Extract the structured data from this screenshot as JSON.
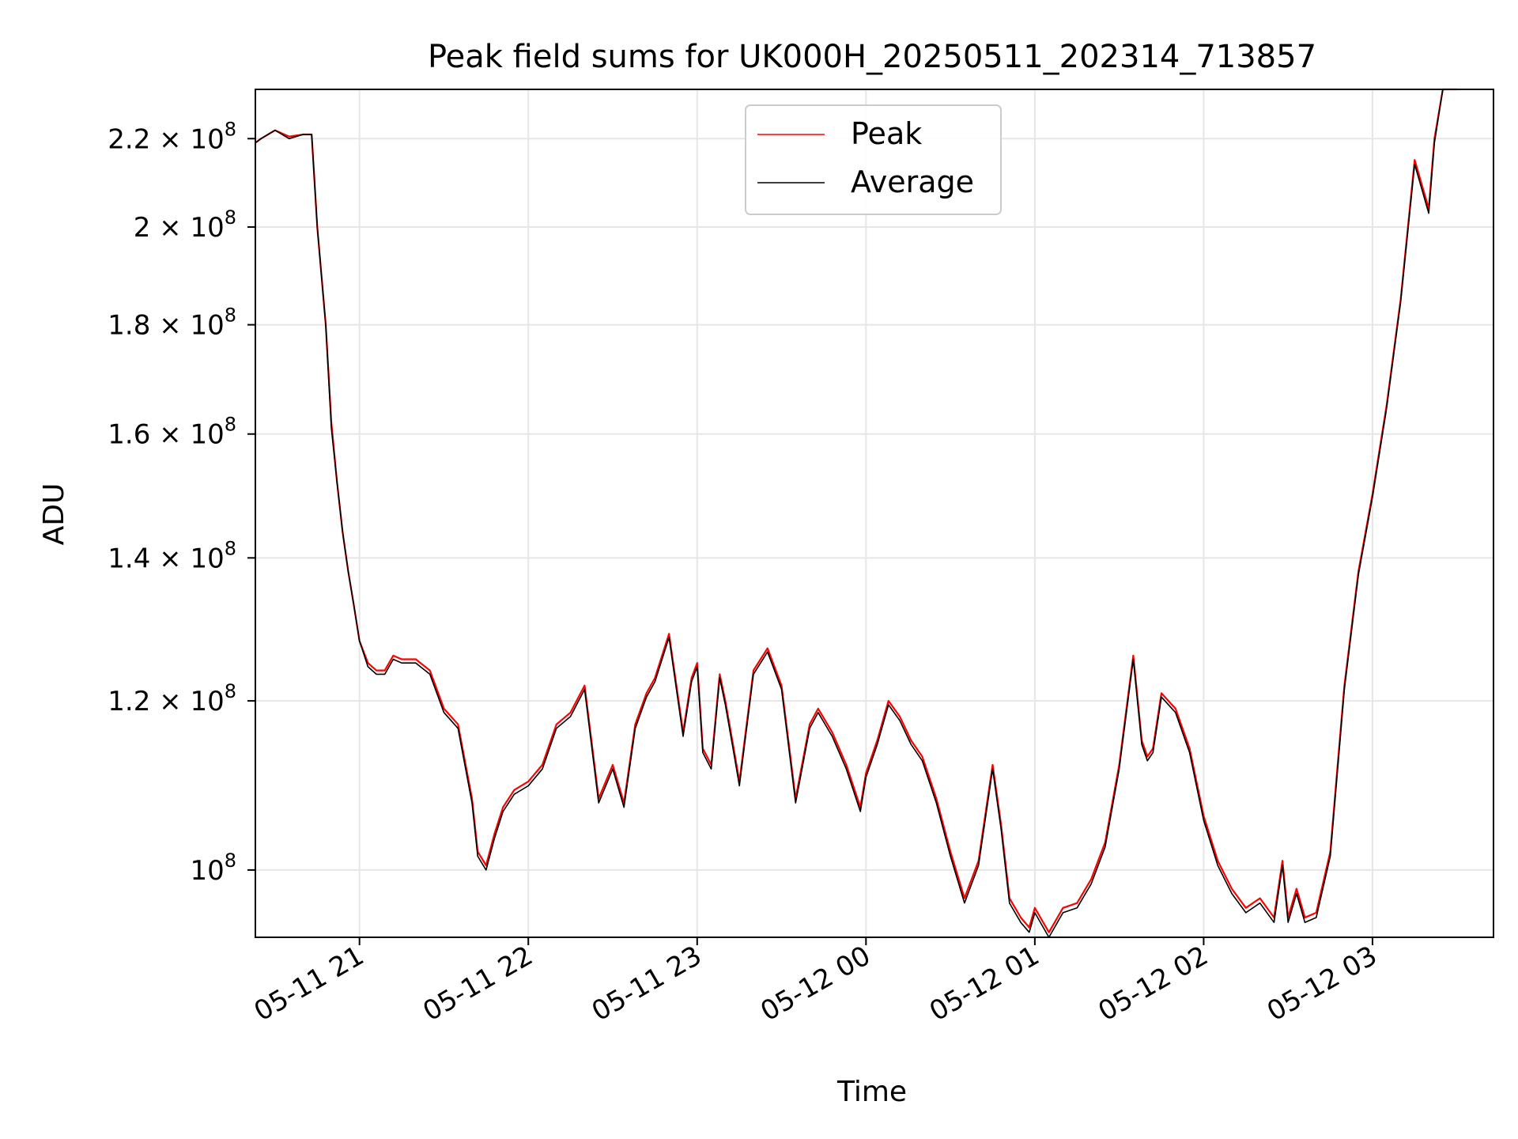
{
  "chart_data": {
    "type": "line",
    "title": "Peak field sums for UK000H_20250511_202314_713857",
    "xlabel": "Time",
    "ylabel": "ADU",
    "yscale": "log",
    "ylim": [
      93000000.0,
      232000000.0
    ],
    "xlim": [
      "2025-05-11 20:23",
      "2025-05-12 03:43"
    ],
    "grid": true,
    "legend_position": "top-center",
    "x_ticks": [
      {
        "time": "2025-05-11 21:00",
        "label": "05-11 21"
      },
      {
        "time": "2025-05-11 22:00",
        "label": "05-11 22"
      },
      {
        "time": "2025-05-11 23:00",
        "label": "05-11 23"
      },
      {
        "time": "2025-05-12 00:00",
        "label": "05-12 00"
      },
      {
        "time": "2025-05-12 01:00",
        "label": "05-12 01"
      },
      {
        "time": "2025-05-12 02:00",
        "label": "05-12 02"
      },
      {
        "time": "2025-05-12 03:00",
        "label": "05-12 03"
      }
    ],
    "y_ticks": [
      {
        "value": 100000000.0,
        "mantissa": "",
        "exponent": "8"
      },
      {
        "value": 120000000.0,
        "mantissa": "1.2",
        "exponent": "8"
      },
      {
        "value": 140000000.0,
        "mantissa": "1.4",
        "exponent": "8"
      },
      {
        "value": 160000000.0,
        "mantissa": "1.6",
        "exponent": "8"
      },
      {
        "value": 180000000.0,
        "mantissa": "1.8",
        "exponent": "8"
      },
      {
        "value": 200000000.0,
        "mantissa": "2",
        "exponent": "8"
      },
      {
        "value": 220000000.0,
        "mantissa": "2.2",
        "exponent": "8"
      }
    ],
    "series": [
      {
        "name": "Peak",
        "color": "#ff0000"
      },
      {
        "name": "Average",
        "color": "#000000"
      }
    ],
    "x": [
      "2025-05-11 20:23",
      "2025-05-11 20:25",
      "2025-05-11 20:30",
      "2025-05-11 20:35",
      "2025-05-11 20:40",
      "2025-05-11 20:43",
      "2025-05-11 20:45",
      "2025-05-11 20:48",
      "2025-05-11 20:50",
      "2025-05-11 20:52",
      "2025-05-11 20:54",
      "2025-05-11 20:56",
      "2025-05-11 20:58",
      "2025-05-11 21:00",
      "2025-05-11 21:03",
      "2025-05-11 21:06",
      "2025-05-11 21:09",
      "2025-05-11 21:12",
      "2025-05-11 21:15",
      "2025-05-11 21:20",
      "2025-05-11 21:25",
      "2025-05-11 21:30",
      "2025-05-11 21:35",
      "2025-05-11 21:40",
      "2025-05-11 21:42",
      "2025-05-11 21:45",
      "2025-05-11 21:48",
      "2025-05-11 21:51",
      "2025-05-11 21:55",
      "2025-05-11 22:00",
      "2025-05-11 22:05",
      "2025-05-11 22:10",
      "2025-05-11 22:15",
      "2025-05-11 22:20",
      "2025-05-11 22:25",
      "2025-05-11 22:30",
      "2025-05-11 22:34",
      "2025-05-11 22:38",
      "2025-05-11 22:42",
      "2025-05-11 22:45",
      "2025-05-11 22:50",
      "2025-05-11 22:55",
      "2025-05-11 22:58",
      "2025-05-11 23:00",
      "2025-05-11 23:02",
      "2025-05-11 23:05",
      "2025-05-11 23:08",
      "2025-05-11 23:10",
      "2025-05-11 23:13",
      "2025-05-11 23:15",
      "2025-05-11 23:20",
      "2025-05-11 23:25",
      "2025-05-11 23:30",
      "2025-05-11 23:35",
      "2025-05-11 23:40",
      "2025-05-11 23:43",
      "2025-05-11 23:48",
      "2025-05-11 23:53",
      "2025-05-11 23:58",
      "2025-05-12 00:00",
      "2025-05-12 00:04",
      "2025-05-12 00:08",
      "2025-05-12 00:12",
      "2025-05-12 00:16",
      "2025-05-12 00:20",
      "2025-05-12 00:25",
      "2025-05-12 00:30",
      "2025-05-12 00:35",
      "2025-05-12 00:40",
      "2025-05-12 00:45",
      "2025-05-12 00:48",
      "2025-05-12 00:51",
      "2025-05-12 00:55",
      "2025-05-12 00:58",
      "2025-05-12 01:00",
      "2025-05-12 01:05",
      "2025-05-12 01:10",
      "2025-05-12 01:15",
      "2025-05-12 01:20",
      "2025-05-12 01:25",
      "2025-05-12 01:30",
      "2025-05-12 01:35",
      "2025-05-12 01:38",
      "2025-05-12 01:40",
      "2025-05-12 01:42",
      "2025-05-12 01:45",
      "2025-05-12 01:50",
      "2025-05-12 01:55",
      "2025-05-12 02:00",
      "2025-05-12 02:05",
      "2025-05-12 02:10",
      "2025-05-12 02:15",
      "2025-05-12 02:20",
      "2025-05-12 02:25",
      "2025-05-12 02:28",
      "2025-05-12 02:30",
      "2025-05-12 02:33",
      "2025-05-12 02:36",
      "2025-05-12 02:40",
      "2025-05-12 02:45",
      "2025-05-12 02:50",
      "2025-05-12 02:55",
      "2025-05-12 03:00",
      "2025-05-12 03:05",
      "2025-05-12 03:10",
      "2025-05-12 03:15",
      "2025-05-12 03:20",
      "2025-05-12 03:22",
      "2025-05-12 03:25",
      "2025-05-12 03:30",
      "2025-05-12 03:35",
      "2025-05-12 03:43"
    ],
    "peak": [
      219000000.0,
      220000000.0,
      222000000.0,
      220500000.0,
      221000000.0,
      221000000.0,
      200000000.0,
      180000000.0,
      162000000.0,
      152000000.0,
      144000000.0,
      138000000.0,
      133000000.0,
      128000000.0,
      125000000.0,
      124000000.0,
      124000000.0,
      126000000.0,
      125500000.0,
      125500000.0,
      124000000.0,
      119000000.0,
      117000000.0,
      108000000.0,
      102000000.0,
      100500000.0,
      104000000.0,
      107000000.0,
      109000000.0,
      110000000.0,
      112000000.0,
      117000000.0,
      118500000.0,
      122000000.0,
      108000000.0,
      112000000.0,
      107500000.0,
      117000000.0,
      121000000.0,
      123000000.0,
      129000000.0,
      116000000.0,
      123000000.0,
      125000000.0,
      114000000.0,
      112000000.0,
      123500000.0,
      120000000.0,
      114000000.0,
      110000000.0,
      124000000.0,
      127000000.0,
      122000000.0,
      108000000.0,
      117000000.0,
      119000000.0,
      116000000.0,
      112000000.0,
      107000000.0,
      111000000.0,
      115000000.0,
      120000000.0,
      118000000.0,
      115000000.0,
      113000000.0,
      108000000.0,
      102000000.0,
      97000000.0,
      101000000.0,
      112000000.0,
      105000000.0,
      97000000.0,
      95000000.0,
      94000000.0,
      96000000.0,
      93500000.0,
      96000000.0,
      96500000.0,
      99000000.0,
      103000000.0,
      112000000.0,
      126000000.0,
      115000000.0,
      113000000.0,
      114000000.0,
      121000000.0,
      119000000.0,
      114000000.0,
      106000000.0,
      101000000.0,
      98000000.0,
      96000000.0,
      97000000.0,
      95000000.0,
      101000000.0,
      95000000.0,
      98000000.0,
      95000000.0,
      95500000.0,
      102000000.0,
      122000000.0,
      138000000.0,
      150000000.0,
      165000000.0,
      185000000.0,
      215000000.0,
      204000000.0,
      220000000.0,
      232000000.0,
      232000000.0
    ],
    "average": [
      219000000.0,
      220000000.0,
      222000000.0,
      220000000.0,
      221000000.0,
      221000000.0,
      200000000.0,
      180000000.0,
      161000000.0,
      152000000.0,
      144000000.0,
      138000000.0,
      133000000.0,
      128000000.0,
      124500000.0,
      123500000.0,
      123500000.0,
      125500000.0,
      125000000.0,
      125000000.0,
      123500000.0,
      118500000.0,
      116500000.0,
      107500000.0,
      101500000.0,
      100000000.0,
      103500000.0,
      106500000.0,
      108500000.0,
      109500000.0,
      111500000.0,
      116500000.0,
      118000000.0,
      121500000.0,
      107500000.0,
      111500000.0,
      107000000.0,
      116500000.0,
      120500000.0,
      122500000.0,
      128500000.0,
      115500000.0,
      122500000.0,
      124500000.0,
      113500000.0,
      111500000.0,
      123000000.0,
      119500000.0,
      113500000.0,
      109500000.0,
      123500000.0,
      126500000.0,
      121500000.0,
      107500000.0,
      116500000.0,
      118500000.0,
      115500000.0,
      111500000.0,
      106500000.0,
      110500000.0,
      114500000.0,
      119500000.0,
      117500000.0,
      114500000.0,
      112500000.0,
      107500000.0,
      101500000.0,
      96500000.0,
      100500000.0,
      111500000.0,
      104500000.0,
      96500000.0,
      94500000.0,
      93500000.0,
      95500000.0,
      93000000.0,
      95500000.0,
      96000000.0,
      98500000.0,
      102500000.0,
      111500000.0,
      125500000.0,
      114500000.0,
      112500000.0,
      113500000.0,
      120500000.0,
      118500000.0,
      113500000.0,
      105500000.0,
      100500000.0,
      97500000.0,
      95500000.0,
      96500000.0,
      94500000.0,
      100500000.0,
      94500000.0,
      97500000.0,
      94500000.0,
      95000000.0,
      101500000.0,
      121500000.0,
      137500000.0,
      149500000.0,
      164500000.0,
      184500000.0,
      214000000.0,
      203000000.0,
      219000000.0,
      232000000.0,
      232000000.0
    ]
  }
}
